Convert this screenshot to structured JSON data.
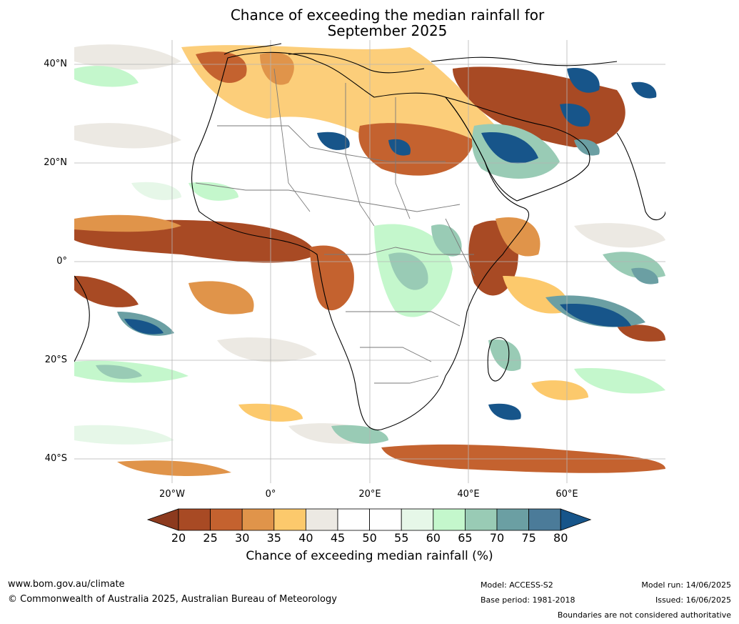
{
  "title_line1": "Chance of exceeding the median rainfall for",
  "title_line2": "September 2025",
  "latitude_labels": [
    "40°N",
    "20°N",
    "0°",
    "20°S",
    "40°S"
  ],
  "longitude_labels": [
    "20°W",
    "0°",
    "20°E",
    "40°E",
    "60°E"
  ],
  "colorbar": {
    "ticks": [
      "20",
      "25",
      "30",
      "35",
      "40",
      "45",
      "50",
      "55",
      "60",
      "65",
      "70",
      "75",
      "80"
    ],
    "label": "Chance of exceeding median rainfall (%)",
    "colors": {
      "below20": "#8c3a1e",
      "c20_25": "#a84a24",
      "c25_30": "#c4622f",
      "c30_35": "#e0944a",
      "c35_40": "#fcc96c",
      "c40_45": "#ece9e3",
      "c45_50": "#ffffff",
      "c50_55": "#ffffff",
      "c55_60": "#e6f7e8",
      "c60_65": "#c4f7cc",
      "c65_70": "#99cbb5",
      "c70_75": "#6b9fa3",
      "c75_80": "#4b7b99",
      "above80": "#17558a"
    }
  },
  "footer": {
    "website": "www.bom.gov.au/climate",
    "copyright": "© Commonwealth of Australia 2025, Australian Bureau of Meteorology",
    "model": "Model: ACCESS-S2",
    "base_period": "Base period: 1981-2018",
    "model_run": "Model run: 14/06/2025",
    "issued": "Issued: 16/06/2025",
    "disclaimer": "Boundaries are not considered authoritative"
  }
}
